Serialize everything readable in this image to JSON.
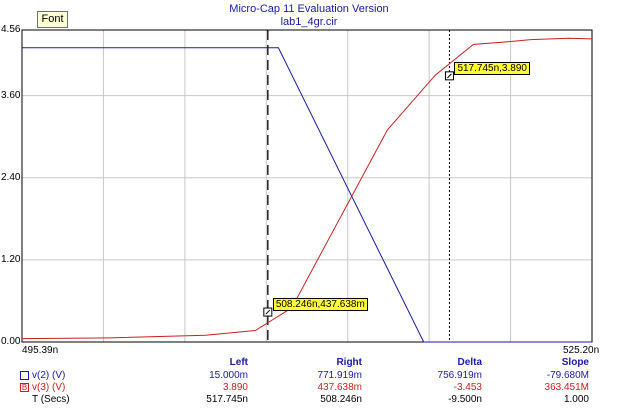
{
  "window": {
    "title": "Micro-Cap 11 Evaluation Version",
    "subtitle": "lab1_4gr.cir",
    "font_button": "Font"
  },
  "colors": {
    "blue": "#1a1aa6",
    "red": "#cc2020",
    "grid": "#c8c8c8",
    "label_bg": "#ffff33"
  },
  "chart_data": {
    "type": "line",
    "xlim": [
      495.39,
      525.2
    ],
    "ylim": [
      0,
      4.56
    ],
    "y_ticks": [
      "4.56",
      "3.60",
      "2.40",
      "1.20",
      "0.00"
    ],
    "x_tick_left": "495.39n",
    "x_tick_right": "525.20n",
    "grid": true,
    "series": [
      {
        "name": "v(2) (V)",
        "color": "#1a1aa6",
        "x": [
          495.39,
          508.8,
          516.4,
          525.2
        ],
        "y": [
          4.3,
          4.3,
          0.0,
          0.0
        ]
      },
      {
        "name": "v(3) (V)",
        "color": "#cc2020",
        "x": [
          495.39,
          500.0,
          505.0,
          507.6,
          509.5,
          512.0,
          514.5,
          517.0,
          519.0,
          520.5,
          522.0,
          524.0,
          525.2
        ],
        "y": [
          0.05,
          0.06,
          0.1,
          0.17,
          0.5,
          1.8,
          3.1,
          3.9,
          4.35,
          4.38,
          4.42,
          4.44,
          4.43
        ]
      }
    ],
    "cursors": [
      {
        "x": 508.246,
        "y": 0.437638,
        "label": "508.246n,437.638m",
        "style": "dashed"
      },
      {
        "x": 517.745,
        "y": 3.89,
        "label": "517.745n,3.890",
        "style": "dotted"
      }
    ]
  },
  "table": {
    "headers": [
      "Left",
      "Right",
      "Delta",
      "Slope"
    ],
    "rows": [
      {
        "label": "v(2) (V)",
        "marker": "",
        "color": "#1a1aa6",
        "values": [
          "15.000m",
          "771.919m",
          "756.919m",
          "-79.680M"
        ]
      },
      {
        "label": "v(3) (V)",
        "marker": "B",
        "color": "#cc2020",
        "values": [
          "3.890",
          "437.638m",
          "-3.453",
          "363.451M"
        ]
      },
      {
        "label": "T (Secs)",
        "marker": "",
        "color": "#000000",
        "values": [
          "517.745n",
          "508.246n",
          "-9.500n",
          "1.000"
        ]
      }
    ]
  }
}
